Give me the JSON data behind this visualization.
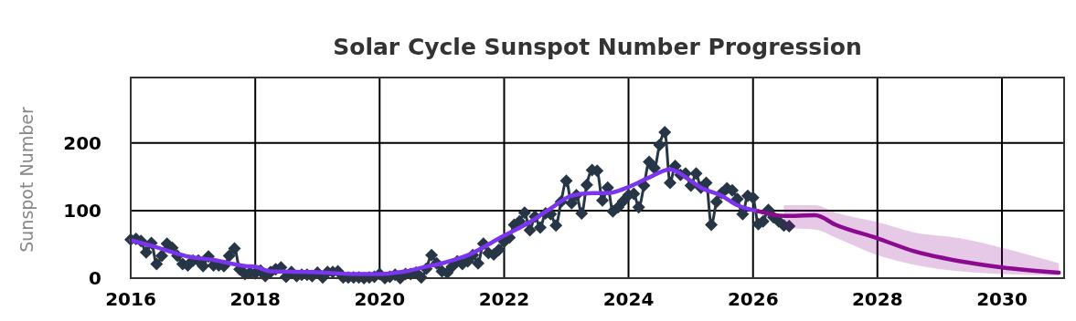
{
  "chart_data": {
    "type": "line",
    "title": "Solar Cycle Sunspot Number Progression",
    "ylabel": "Sunspot Number",
    "xlim": [
      "2016-01-01",
      "2031-01-01"
    ],
    "xticks": [
      "2016",
      "2018",
      "2020",
      "2022",
      "2024",
      "2026",
      "2028",
      "2030"
    ],
    "ylim": [
      0,
      297
    ],
    "yticks": [
      0,
      100,
      200
    ],
    "grid": true,
    "series": [
      {
        "color": "#263646",
        "marker": "diamond",
        "x": [
          "2016-01",
          "2016-02",
          "2016-03",
          "2016-04",
          "2016-05",
          "2016-06",
          "2016-07",
          "2016-08",
          "2016-09",
          "2016-10",
          "2016-11",
          "2016-12",
          "2017-01",
          "2017-02",
          "2017-03",
          "2017-04",
          "2017-05",
          "2017-06",
          "2017-07",
          "2017-08",
          "2017-09",
          "2017-10",
          "2017-11",
          "2017-12",
          "2018-01",
          "2018-02",
          "2018-03",
          "2018-04",
          "2018-05",
          "2018-06",
          "2018-07",
          "2018-08",
          "2018-09",
          "2018-10",
          "2018-11",
          "2018-12",
          "2019-01",
          "2019-02",
          "2019-03",
          "2019-04",
          "2019-05",
          "2019-06",
          "2019-07",
          "2019-08",
          "2019-09",
          "2019-10",
          "2019-11",
          "2019-12",
          "2020-01",
          "2020-02",
          "2020-03",
          "2020-04",
          "2020-05",
          "2020-06",
          "2020-07",
          "2020-08",
          "2020-09",
          "2020-10",
          "2020-11",
          "2020-12",
          "2021-01",
          "2021-02",
          "2021-03",
          "2021-04",
          "2021-05",
          "2021-06",
          "2021-07",
          "2021-08",
          "2021-09",
          "2021-10",
          "2021-11",
          "2021-12",
          "2022-01",
          "2022-02",
          "2022-03",
          "2022-04",
          "2022-05",
          "2022-06",
          "2022-07",
          "2022-08",
          "2022-09",
          "2022-10",
          "2022-11",
          "2022-12",
          "2023-01",
          "2023-02",
          "2023-03",
          "2023-04",
          "2023-05",
          "2023-06",
          "2023-07",
          "2023-08",
          "2023-09",
          "2023-10",
          "2023-11",
          "2023-12",
          "2024-01",
          "2024-02",
          "2024-03",
          "2024-04",
          "2024-05",
          "2024-06",
          "2024-07",
          "2024-08",
          "2024-09",
          "2024-10",
          "2024-11",
          "2024-12",
          "2025-01",
          "2025-02",
          "2025-03",
          "2025-04",
          "2025-05",
          "2025-06",
          "2025-07",
          "2025-08",
          "2025-09",
          "2025-10",
          "2025-11",
          "2025-12",
          "2026-01",
          "2026-02",
          "2026-03",
          "2026-04",
          "2026-05",
          "2026-06",
          "2026-07",
          "2026-08"
        ],
        "values": [
          57,
          58,
          55,
          38,
          52,
          21,
          33,
          51,
          45,
          33,
          21,
          19,
          26,
          26,
          18,
          32,
          19,
          19,
          18,
          33,
          44,
          13,
          6,
          8,
          7,
          11,
          3,
          9,
          13,
          16,
          2,
          9,
          3,
          5,
          5,
          3,
          8,
          1,
          9,
          9,
          10,
          1,
          1,
          1,
          1,
          0,
          1,
          2,
          6,
          0,
          2,
          5,
          0,
          6,
          6,
          8,
          1,
          14,
          34,
          22,
          10,
          8,
          17,
          25,
          21,
          25,
          34,
          22,
          51,
          37,
          35,
          42,
          54,
          60,
          79,
          84,
          97,
          71,
          91,
          75,
          96,
          95,
          78,
          113,
          144,
          111,
          123,
          96,
          138,
          160,
          159,
          115,
          134,
          99,
          105,
          114,
          123,
          125,
          105,
          137,
          172,
          163,
          197,
          216,
          141,
          166,
          153,
          155,
          137,
          155,
          134,
          141,
          79,
          113,
          126,
          133,
          130,
          117,
          95,
          122,
          119,
          80,
          84,
          101,
          90,
          84,
          78,
          77
        ]
      },
      {
        "color": "#7b35f0",
        "marker": "none",
        "x": [
          "2016-01",
          "2016-05",
          "2016-10",
          "2016-12",
          "2017-05",
          "2017-11",
          "2018-01",
          "2018-04",
          "2018-12",
          "2019-09",
          "2020-01",
          "2020-04",
          "2020-06",
          "2020-10",
          "2021-01",
          "2021-06",
          "2022-01",
          "2022-06",
          "2022-10",
          "2023-02",
          "2023-06",
          "2023-09",
          "2024-01",
          "2024-05",
          "2024-09",
          "2025-01",
          "2025-03",
          "2025-07",
          "2025-10",
          "2026-02"
        ],
        "values": [
          56,
          48,
          36,
          32,
          27,
          18,
          17,
          10,
          9,
          6,
          6,
          8,
          10,
          17,
          22,
          34,
          63,
          83,
          103,
          122,
          126,
          126,
          135,
          149,
          161,
          144,
          134,
          122,
          108,
          99
        ]
      },
      {
        "color": "#8b0a8f",
        "marker": "none",
        "x": [
          "2026-02",
          "2026-07",
          "2027-01",
          "2027-05",
          "2028-01",
          "2028-08",
          "2029-05",
          "2030-01",
          "2030-12"
        ],
        "values": [
          99,
          92,
          93,
          79,
          59,
          40,
          25,
          16,
          8
        ],
        "lower": [
          null,
          74,
          72,
          60,
          34,
          20,
          10,
          6,
          4
        ],
        "upper": [
          null,
          108,
          108,
          97,
          83,
          68,
          59,
          45,
          22
        ]
      }
    ]
  }
}
